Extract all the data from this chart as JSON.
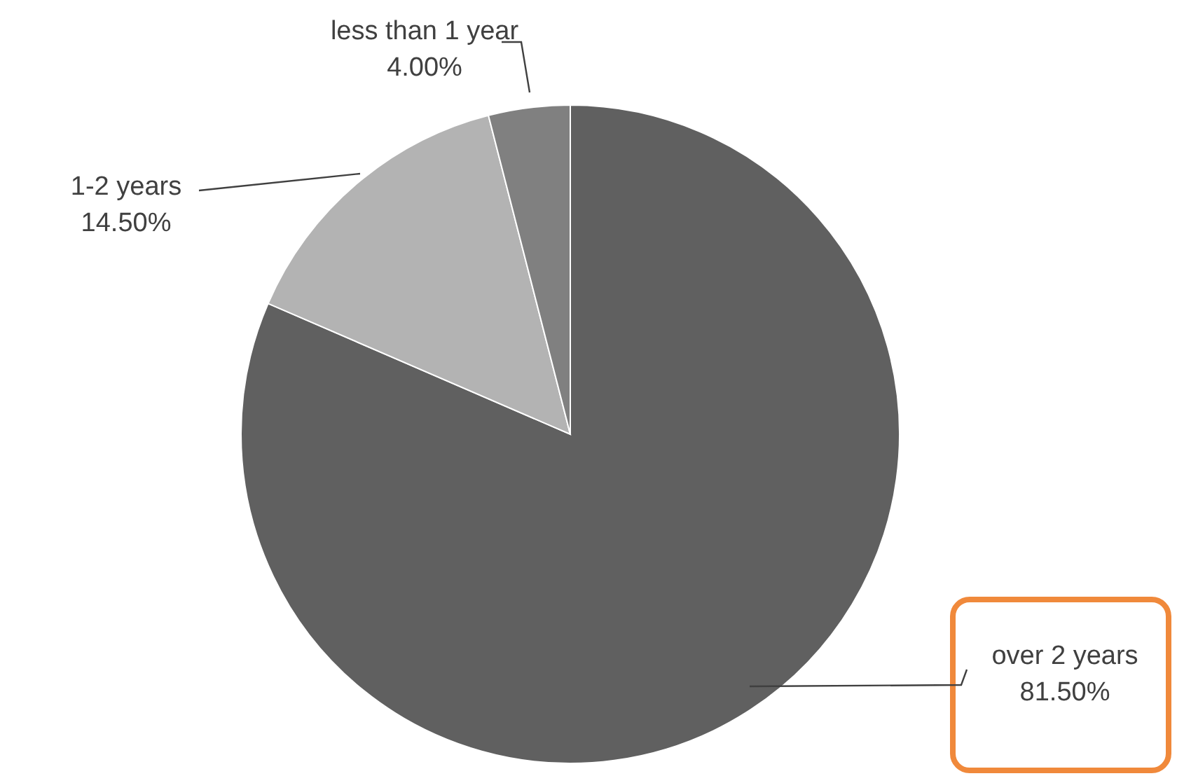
{
  "chart_data": {
    "type": "pie",
    "categories": [
      "over 2 years",
      "1-2 years",
      "less than 1 year"
    ],
    "values": [
      81.5,
      14.5,
      4
    ],
    "colors": [
      "#606060",
      "#b3b3b3",
      "#808080"
    ],
    "value_labels": [
      "81.50%",
      "14.50%",
      "4.00%"
    ]
  }
}
